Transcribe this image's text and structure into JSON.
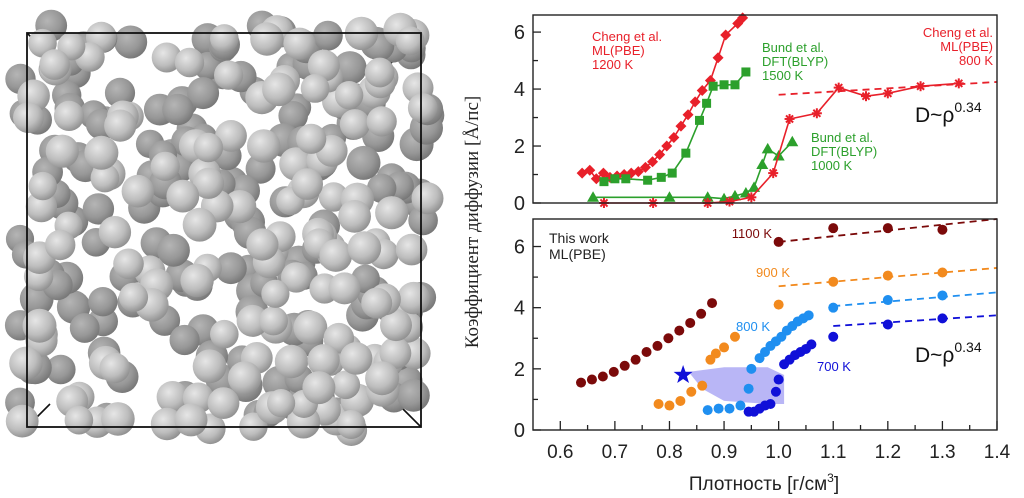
{
  "figure": {
    "left_panel": {
      "description": "Snapshot of atomic configuration in periodic simulation box",
      "atom_color": "#b8b8b8"
    },
    "shared": {
      "ylabel": "Коэффициент диффузии [Å/пс]",
      "xlabel": "Плотность [г/см",
      "xlabel_sup": "3",
      "xlabel_end": "]",
      "fit_label": "D~ρ",
      "fit_exponent": "0.34"
    }
  },
  "chart_data": [
    {
      "type": "line",
      "panel": "top",
      "xlim": [
        0.55,
        1.4
      ],
      "ylim": [
        0,
        6.6
      ],
      "yticks": [
        0,
        2,
        4,
        6
      ],
      "xticks": [
        0.6,
        0.7,
        0.8,
        0.9,
        1.0,
        1.1,
        1.2,
        1.3,
        1.4
      ],
      "series": [
        {
          "name": "Cheng et al. ML(PBE) 1200 K",
          "label_lines": [
            "Cheng et al.",
            "ML(PBE)",
            "1200 K"
          ],
          "color": "#e8202a",
          "marker": "diamond",
          "x": [
            0.64,
            0.654,
            0.666,
            0.679,
            0.691,
            0.704,
            0.717,
            0.73,
            0.743,
            0.756,
            0.769,
            0.782,
            0.795,
            0.808,
            0.821,
            0.834,
            0.847,
            0.86,
            0.875,
            0.889,
            0.903,
            0.925,
            0.934
          ],
          "y": [
            1.05,
            1.15,
            0.85,
            1.05,
            0.9,
            0.95,
            1.0,
            1.05,
            1.1,
            1.25,
            1.45,
            1.7,
            2.0,
            2.3,
            2.7,
            3.1,
            3.55,
            3.95,
            4.3,
            5.1,
            5.9,
            6.3,
            6.5
          ]
        },
        {
          "name": "Bund et al. DFT(BLYP) 1500 K",
          "label_lines": [
            "Bund et al.",
            "DFT(BLYP)",
            "1500 K"
          ],
          "color": "#2ca02c",
          "marker": "square",
          "x": [
            0.68,
            0.7,
            0.72,
            0.76,
            0.785,
            0.805,
            0.83,
            0.855,
            0.868,
            0.88,
            0.9,
            0.92,
            0.94
          ],
          "y": [
            0.75,
            0.85,
            0.85,
            0.8,
            0.9,
            1.05,
            1.75,
            2.9,
            3.5,
            4.1,
            4.15,
            4.15,
            4.6
          ]
        },
        {
          "name": "Bund et al. DFT(BLYP) 1000 K",
          "label_lines": [
            "Bund et al.",
            "DFT(BLYP)",
            "1000 K"
          ],
          "color": "#2ca02c",
          "marker": "triangle",
          "x": [
            0.66,
            0.8,
            0.87,
            0.9,
            0.92,
            0.94,
            0.955,
            0.97,
            0.98,
            1.0,
            1.025
          ],
          "y": [
            0.2,
            0.2,
            0.2,
            0.15,
            0.25,
            0.35,
            0.55,
            1.35,
            1.9,
            1.65,
            2.15
          ]
        },
        {
          "name": "Cheng et al. ML(PBE) 800 K",
          "label_lines": [
            "Cheng et al.",
            "ML(PBE)",
            "800 K"
          ],
          "color": "#e8202a",
          "marker": "asterisk",
          "x": [
            0.68,
            0.77,
            0.87,
            0.91,
            0.95,
            0.99,
            1.02,
            1.07,
            1.11,
            1.16,
            1.2,
            1.26,
            1.33
          ],
          "y": [
            0.0,
            0.0,
            0.0,
            0.05,
            0.2,
            1.05,
            2.95,
            3.15,
            4.05,
            3.75,
            3.85,
            4.1,
            4.2
          ]
        }
      ],
      "fits": [
        {
          "series": "Cheng et al. ML(PBE) 800 K",
          "color": "#e8202a",
          "x": [
            1.0,
            1.4
          ],
          "y": [
            3.8,
            4.25
          ]
        }
      ]
    },
    {
      "type": "scatter",
      "panel": "bottom",
      "xlim": [
        0.55,
        1.4
      ],
      "ylim": [
        0,
        6.9
      ],
      "yticks": [
        0,
        2,
        4,
        6
      ],
      "xticks": [
        0.6,
        0.7,
        0.8,
        0.9,
        1.0,
        1.1,
        1.2,
        1.3,
        1.4
      ],
      "title_lines": [
        "This work",
        "ML(PBE)"
      ],
      "series": [
        {
          "name": "1100 K",
          "color": "#7b0a0a",
          "x": [
            0.638,
            0.658,
            0.678,
            0.698,
            0.718,
            0.738,
            0.758,
            0.778,
            0.798,
            0.818,
            0.838,
            0.858,
            0.878,
            1.0,
            1.1,
            1.2,
            1.3
          ],
          "y": [
            1.55,
            1.65,
            1.75,
            1.9,
            2.1,
            2.3,
            2.55,
            2.75,
            3.0,
            3.25,
            3.5,
            3.8,
            4.15,
            6.15,
            6.6,
            6.6,
            6.55
          ]
        },
        {
          "name": "900 K",
          "color": "#f28a1e",
          "x": [
            0.78,
            0.8,
            0.82,
            0.84,
            0.86,
            0.875,
            0.885,
            0.9,
            0.92,
            1.0,
            1.1,
            1.2,
            1.3
          ],
          "y": [
            0.85,
            0.8,
            0.95,
            1.25,
            1.45,
            2.3,
            2.5,
            2.7,
            3.05,
            4.1,
            4.85,
            5.05,
            5.15
          ]
        },
        {
          "name": "800 K",
          "color": "#1f8ff0",
          "x": [
            0.87,
            0.89,
            0.91,
            0.93,
            0.945,
            0.95,
            0.965,
            0.975,
            0.985,
            0.995,
            1.005,
            1.015,
            1.025,
            1.035,
            1.045,
            1.055,
            1.1,
            1.2,
            1.3
          ],
          "y": [
            0.65,
            0.7,
            0.7,
            0.8,
            1.35,
            2.0,
            2.35,
            2.55,
            2.75,
            2.9,
            3.05,
            3.25,
            3.4,
            3.55,
            3.65,
            3.75,
            4.0,
            4.25,
            4.4
          ]
        },
        {
          "name": "700 K",
          "color": "#1010d8",
          "x": [
            0.945,
            0.955,
            0.965,
            0.975,
            0.985,
            0.995,
            1.0,
            1.01,
            1.02,
            1.03,
            1.04,
            1.05,
            1.06,
            1.1,
            1.2,
            1.3
          ],
          "y": [
            0.6,
            0.6,
            0.7,
            0.8,
            0.85,
            1.25,
            1.65,
            2.15,
            2.3,
            2.45,
            2.55,
            2.65,
            2.8,
            3.05,
            3.45,
            3.65
          ]
        }
      ],
      "fits": [
        {
          "series": "1100 K",
          "color": "#7b0a0a",
          "x": [
            1.0,
            1.4
          ],
          "y": [
            6.15,
            6.9
          ]
        },
        {
          "series": "900 K",
          "color": "#f28a1e",
          "x": [
            1.0,
            1.4
          ],
          "y": [
            4.7,
            5.3
          ]
        },
        {
          "series": "800 K",
          "color": "#1f8ff0",
          "x": [
            1.1,
            1.4
          ],
          "y": [
            4.05,
            4.5
          ]
        },
        {
          "series": "700 K",
          "color": "#1010d8",
          "x": [
            1.1,
            1.4
          ],
          "y": [
            3.4,
            3.75
          ]
        }
      ],
      "star": {
        "x": 0.825,
        "y": 1.8,
        "color": "#1010d8"
      },
      "shaded_region": {
        "color": "#8a86f0",
        "x": [
          0.835,
          0.9,
          0.98,
          1.01,
          1.01,
          0.98,
          0.9,
          0.86
        ],
        "y": [
          1.9,
          2.05,
          2.05,
          1.8,
          0.85,
          0.85,
          0.95,
          1.35
        ]
      }
    }
  ]
}
